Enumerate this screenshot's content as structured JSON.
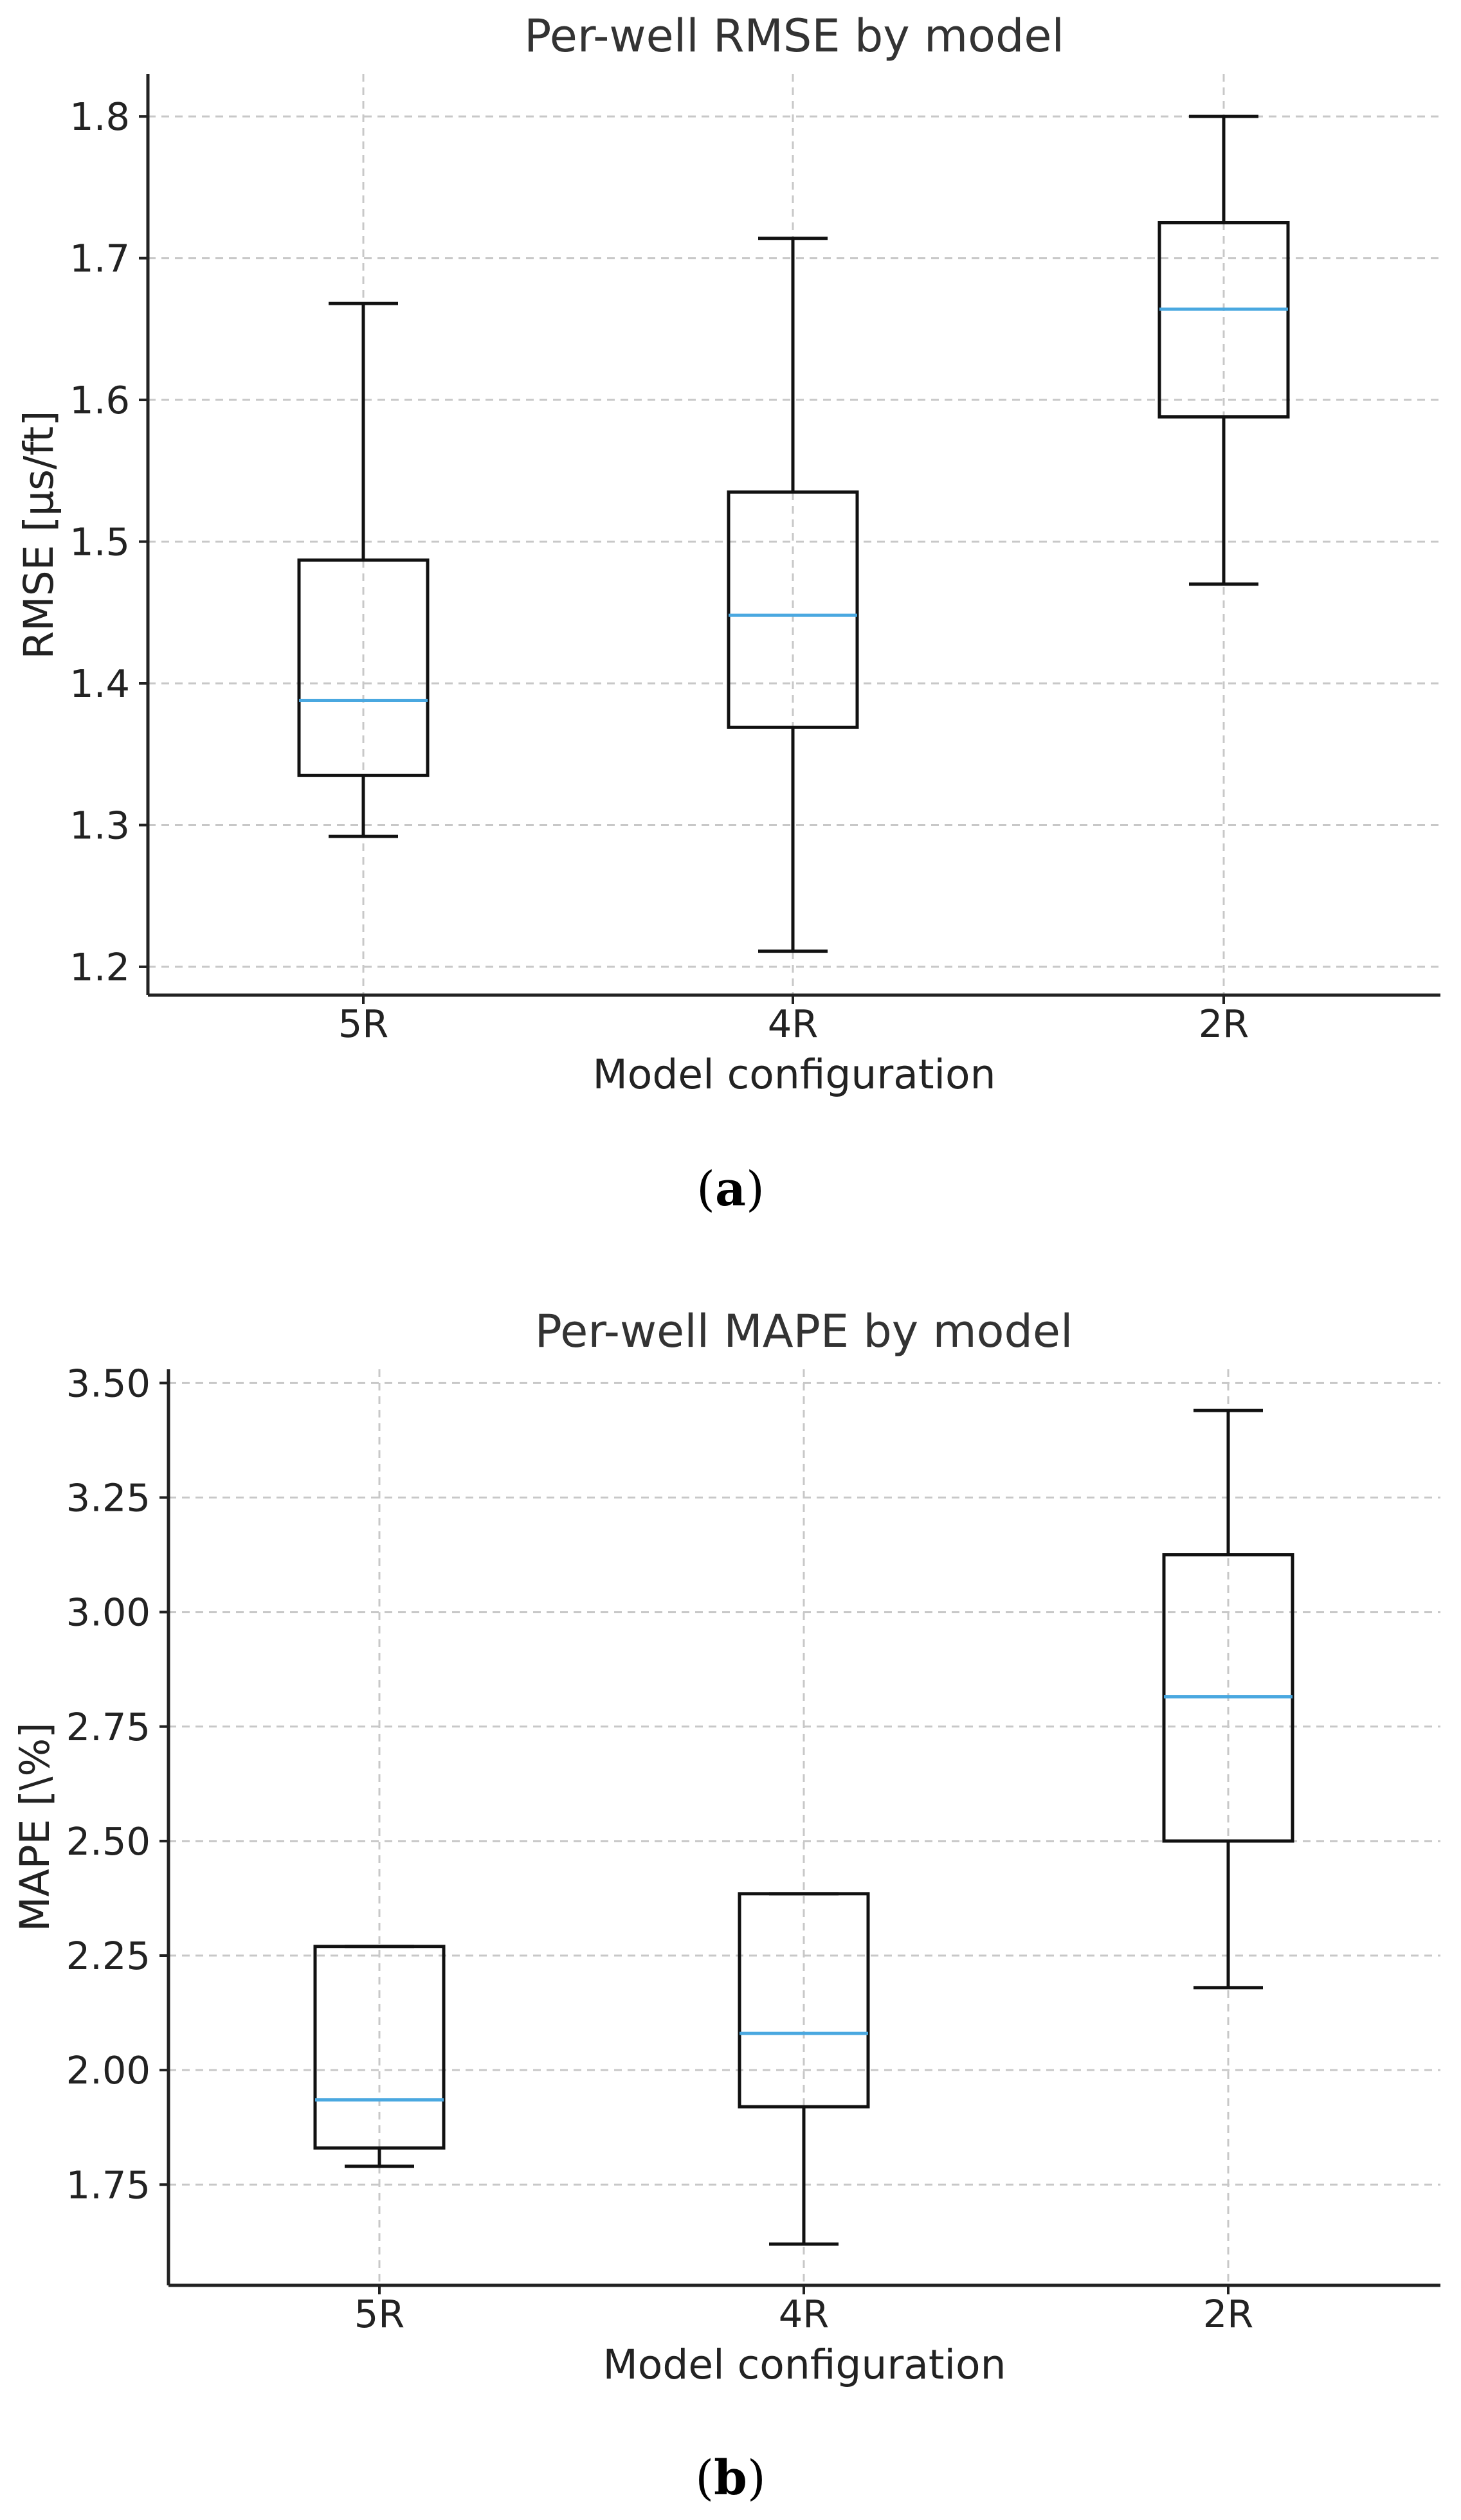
{
  "chart_data": [
    {
      "type": "box",
      "panel": "a",
      "caption_letter": "a",
      "title": "Per-well RMSE by model",
      "xlabel": "Model configuration",
      "ylabel": "RMSE [μs/ft]",
      "categories": [
        "5R",
        "4R",
        "2R"
      ],
      "ylim": [
        1.18,
        1.83
      ],
      "yticks": [
        1.2,
        1.3,
        1.4,
        1.5,
        1.6,
        1.7,
        1.8
      ],
      "ytick_labels": [
        "1.2",
        "1.3",
        "1.4",
        "1.5",
        "1.6",
        "1.7",
        "1.8"
      ],
      "grid": true,
      "boxes": [
        {
          "category": "5R",
          "whisker_low": 1.292,
          "q1": 1.335,
          "median": 1.388,
          "q3": 1.487,
          "whisker_high": 1.668
        },
        {
          "category": "4R",
          "whisker_low": 1.211,
          "q1": 1.369,
          "median": 1.448,
          "q3": 1.535,
          "whisker_high": 1.714
        },
        {
          "category": "2R",
          "whisker_low": 1.47,
          "q1": 1.588,
          "median": 1.664,
          "q3": 1.725,
          "whisker_high": 1.8
        }
      ]
    },
    {
      "type": "box",
      "panel": "b",
      "caption_letter": "b",
      "title": "Per-well MAPE by model",
      "xlabel": "Model configuration",
      "ylabel": "MAPE [\\%]",
      "categories": [
        "5R",
        "4R",
        "2R"
      ],
      "ylim": [
        1.53,
        3.53
      ],
      "yticks": [
        1.75,
        2.0,
        2.25,
        2.5,
        2.75,
        3.0,
        3.25,
        3.5
      ],
      "ytick_labels": [
        "1.75",
        "2.00",
        "2.25",
        "2.50",
        "2.75",
        "3.00",
        "3.25",
        "3.50"
      ],
      "grid": true,
      "boxes": [
        {
          "category": "5R",
          "whisker_low": 1.79,
          "q1": 1.83,
          "median": 1.935,
          "q3": 2.27,
          "whisker_high": 2.27
        },
        {
          "category": "4R",
          "whisker_low": 1.62,
          "q1": 1.92,
          "median": 2.08,
          "q3": 2.385,
          "whisker_high": 2.385
        },
        {
          "category": "2R",
          "whisker_low": 2.18,
          "q1": 2.5,
          "median": 2.815,
          "q3": 3.125,
          "whisker_high": 3.44
        }
      ]
    }
  ],
  "colors": {
    "median": "#4aa8e0",
    "box": "#111111",
    "grid": "#c8c8c8"
  }
}
